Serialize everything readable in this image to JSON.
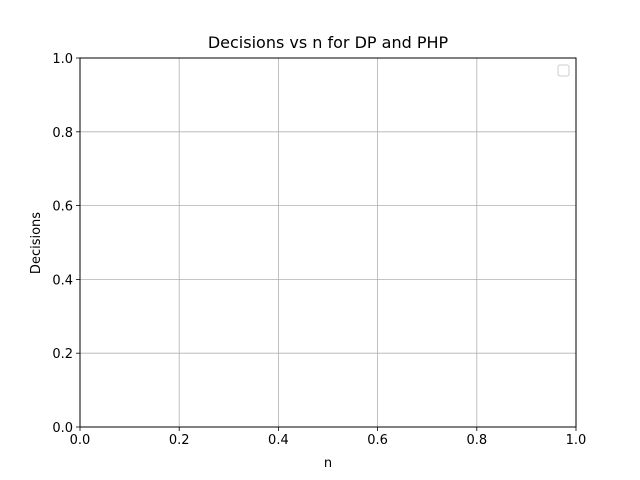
{
  "chart_data": {
    "type": "line",
    "title": "Decisions vs n for DP and PHP",
    "xlabel": "n",
    "ylabel": "Decisions",
    "xlim": [
      0.0,
      1.0
    ],
    "ylim": [
      0.0,
      1.0
    ],
    "x_ticks": [
      "0.0",
      "0.2",
      "0.4",
      "0.6",
      "0.8",
      "1.0"
    ],
    "y_ticks": [
      "0.0",
      "0.2",
      "0.4",
      "0.6",
      "0.8",
      "1.0"
    ],
    "grid": true,
    "legend_position": "top-right",
    "legend_entries": [],
    "series": []
  },
  "colors": {
    "grid": "#b0b0b0",
    "axes": "#000000",
    "legend_border": "#cccccc"
  }
}
